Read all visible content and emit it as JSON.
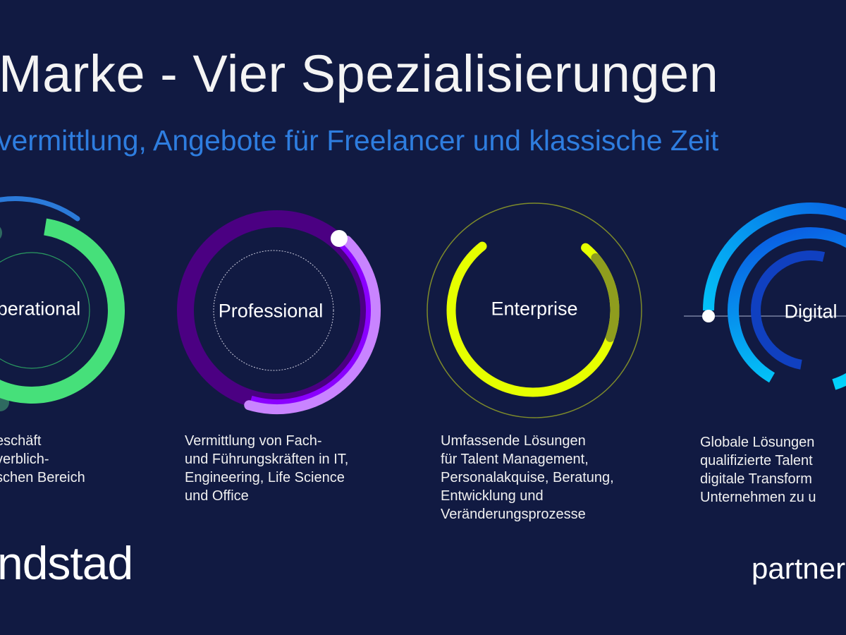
{
  "header": {
    "title": "Marke - Vier Spezialisierungen",
    "subtitle": "vermittlung, Angebote für Freelancer und klassische Zeit"
  },
  "segments": [
    {
      "label": "perational",
      "description": "eschäft\nverblich-\nschen Bereich",
      "color": "#46e07a"
    },
    {
      "label": "Professional",
      "description": "Vermittlung von Fach-\nund Führungskräften in IT,\nEngineering, Life Science\nund Office",
      "color": "#8a00ff"
    },
    {
      "label": "Enterprise",
      "description": "Umfassende Lösungen\nfür Talent Management,\nPersonalakquise, Beratung,\nEntwicklung und\nVeränderungsprozesse",
      "color": "#e6ff00"
    },
    {
      "label": "Digital",
      "description": "Globale Lösungen\nqualifizierte Talent\ndigitale Transform\nUnternehmen zu u",
      "color": "#00d8ff"
    }
  ],
  "logos": {
    "left": "ndstad",
    "right": "partner"
  }
}
